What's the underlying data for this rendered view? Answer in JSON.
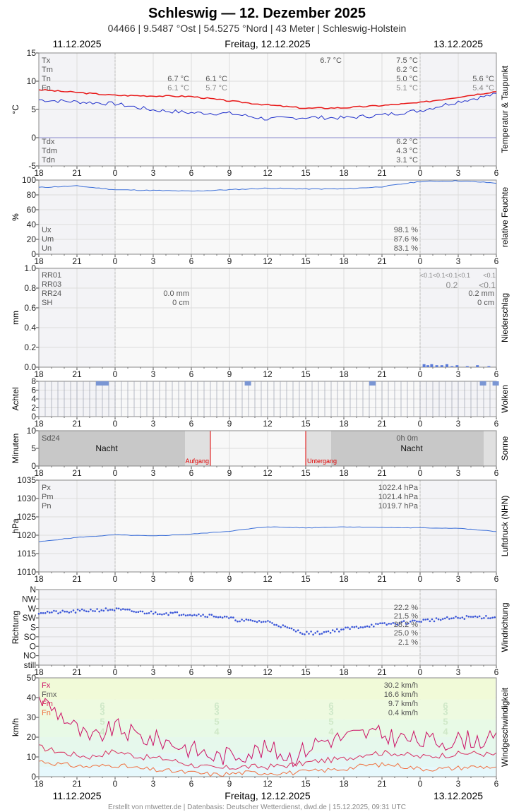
{
  "header": {
    "title": "Schleswig  —  12. Dezember 2025",
    "subtitle": "04466  |  9.5487 °Ost  |  54.5275 °Nord  |  43 Meter  |  Schleswig-Holstein",
    "date_prev": "11.12.2025",
    "date_main": "Freitag, 12.12.2025",
    "date_next": "13.12.2025"
  },
  "footer": {
    "date_prev": "11.12.2025",
    "date_main": "Freitag, 12.12.2025",
    "date_next": "13.12.2025",
    "credit": "Erstellt von mtwetter.de | Datenbasis: Deutscher Wetterdienst, dwd.de | 15.12.2025, 09:31 UTC"
  },
  "x_ticks": [
    "18",
    "21",
    "0",
    "3",
    "6",
    "9",
    "12",
    "15",
    "18",
    "21",
    "0",
    "3",
    "6"
  ],
  "colors": {
    "temperature": "#e81818",
    "dewpoint": "#2030cc",
    "humidity": "#3a6ed8",
    "precip": "#5a7ad8",
    "clouds": "#7a96d4",
    "pressure": "#3a6ed8",
    "wind_dir": "#3a56d8",
    "gust": "#cc1166",
    "mean_wind": "#d83060",
    "min_wind": "#f07040",
    "sunrise_line": "#e00000"
  },
  "chart_data": [
    {
      "type": "line",
      "title": "Temperatur & Taupunkt",
      "ylabel": "°C",
      "ylim": [
        -5,
        15
      ],
      "yticks": [
        "-5",
        "0",
        "5",
        "10",
        "15"
      ],
      "x_hours": [
        -6,
        0,
        3,
        6,
        9,
        12,
        15,
        18,
        21,
        24,
        27,
        30
      ],
      "series": [
        {
          "values": [
            8.5,
            7.5,
            7.4,
            7.3,
            6.5,
            5.8,
            5.2,
            5.3,
            5.7,
            6.2,
            7.2,
            8.2
          ]
        },
        {
          "values": [
            6.7,
            6.0,
            4.9,
            4.4,
            4.3,
            3.3,
            3.6,
            3.5,
            4.0,
            4.8,
            6.4,
            7.7
          ]
        }
      ],
      "labels_top": {
        "Tx": "Tx",
        "Tm": "Tm",
        "Tn": "Tn",
        "Fn": "Fn",
        "c1_tn": "6.7 °C",
        "c1_fn": "6.1 °C",
        "c2_tn": "6.1 °C",
        "c2_fn": "5.7 °C",
        "c3_tx": "6.7 °C",
        "c4_tx": "7.5 °C",
        "c4_tm": "6.2 °C",
        "c4_tn": "5.0 °C",
        "c4_fn": "5.1 °C",
        "c5_tn": "5.6 °C",
        "c5_fn": "5.4 °C"
      },
      "labels_bottom": {
        "Tdx": "Tdx",
        "Tdm": "Tdm",
        "Tdn": "Tdn",
        "tdx": "6.2 °C",
        "tdm": "4.3 °C",
        "tdn": "3.1 °C"
      }
    },
    {
      "type": "line",
      "title": "relative Feuchte",
      "ylabel": "%",
      "ylim": [
        0,
        100
      ],
      "yticks": [
        "0",
        "20",
        "40",
        "60",
        "80",
        "100"
      ],
      "x_hours": [
        -6,
        -3,
        0,
        3,
        6,
        9,
        12,
        15,
        18,
        21,
        24,
        27,
        30
      ],
      "values": [
        90,
        92,
        87,
        86,
        85,
        87,
        89,
        88,
        88,
        91,
        98,
        99,
        96
      ],
      "labels": {
        "Ux": "Ux",
        "Um": "Um",
        "Un": "Un",
        "ux": "98.1 %",
        "um": "87.6 %",
        "un": "83.1 %"
      }
    },
    {
      "type": "bar",
      "title": "Niederschlag",
      "ylabel": "mm",
      "ylim": [
        0,
        1
      ],
      "yticks": [
        "0.0",
        "0.2",
        "0.4",
        "0.6",
        "0.8",
        "1.0"
      ],
      "x_hours": [
        24.2,
        24.5,
        24.8,
        25.2,
        25.6,
        26.0,
        26.4,
        26.8,
        27.6,
        28.4,
        29.3
      ],
      "values": [
        0.03,
        0.02,
        0.03,
        0.02,
        0.02,
        0.03,
        0.01,
        0.02,
        0.01,
        0.02,
        0.01
      ],
      "labels": {
        "RR01": "RR01",
        "RR03": "RR03",
        "RR24": "RR24",
        "SH": "SH",
        "rr24_a": "0.0 mm",
        "sh_a": "0 cm",
        "rr01_b": "<0.1<0.1<0.1<0.1",
        "rr03_b": "0.2",
        "rr01_c": "<0.1",
        "rr03_c": "<0.1",
        "rr24_b": "0.2 mm",
        "sh_b": "0 cm"
      }
    },
    {
      "type": "bar",
      "title": "Wolken",
      "ylabel": "Achtel",
      "ylim": [
        0,
        8
      ],
      "yticks": [
        "0",
        "2",
        "4",
        "6",
        "8"
      ],
      "x_hours": [
        -1.5,
        -1.0,
        10.2,
        20.0,
        28.7,
        29.7
      ],
      "values": [
        8,
        8,
        8,
        8,
        8,
        8
      ]
    },
    {
      "type": "bar",
      "title": "Sonne",
      "ylabel": "Minuten",
      "ylim": [
        0,
        10
      ],
      "yticks": [
        "0",
        "5",
        "10"
      ],
      "sunrise_hour": 7.5,
      "sunset_hour": 15.0,
      "labels": {
        "Sd24": "Sd24",
        "night": "Nacht",
        "sunrise": "Aufgang",
        "sunset": "Untergang",
        "sun_total": "0h 0m"
      }
    },
    {
      "type": "line",
      "title": "Luftdruck (NHN)",
      "ylabel": "hPa",
      "ylim": [
        1010,
        1035
      ],
      "yticks": [
        "1010",
        "1015",
        "1020",
        "1025",
        "1030",
        "1035"
      ],
      "x_hours": [
        -6,
        -3,
        0,
        3,
        6,
        9,
        12,
        15,
        18,
        21,
        24,
        27,
        30
      ],
      "values": [
        1018.2,
        1019.4,
        1020.1,
        1019.8,
        1020.3,
        1021.1,
        1022.3,
        1022.0,
        1022.3,
        1022.1,
        1022.0,
        1021.9,
        1021.0
      ],
      "labels": {
        "Px": "Px",
        "Pm": "Pm",
        "Pn": "Pn",
        "px": "1022.4 hPa",
        "pm": "1021.4 hPa",
        "pn": "1019.7 hPa"
      }
    },
    {
      "type": "scatter",
      "title": "Windrichtung",
      "ylabel": "Richtung",
      "yticks": [
        "still",
        "NO",
        "O",
        "SO",
        "S",
        "SW",
        "W",
        "NW",
        "N"
      ],
      "ylim": [
        0,
        8
      ],
      "x_hours": [
        -6,
        -4,
        -2,
        0,
        2,
        4,
        6,
        8,
        10,
        12,
        13,
        14,
        15,
        16,
        17,
        18,
        20,
        22,
        24,
        26,
        28,
        30
      ],
      "values": [
        5.6,
        5.6,
        5.8,
        5.9,
        5.6,
        5.5,
        5.4,
        5.2,
        4.7,
        4.6,
        4.2,
        3.7,
        3.4,
        3.4,
        3.6,
        3.8,
        4.2,
        4.4,
        4.7,
        4.9,
        5.1,
        5.1
      ],
      "labels": {
        "p_sw": "22.2 %",
        "p_s": "21.5 %",
        "p_w": "28.2 %",
        "p_so": "25.0 %",
        "p_o": "2.1 %"
      }
    },
    {
      "type": "line",
      "title": "Windgeschwindigkeit",
      "ylabel": "km/h",
      "ylim": [
        0,
        50
      ],
      "yticks": [
        "0",
        "10",
        "20",
        "30",
        "40",
        "50"
      ],
      "x_hours": [
        -6,
        -4,
        -2,
        0,
        2,
        4,
        6,
        8,
        10,
        12,
        14,
        16,
        18,
        20,
        22,
        24,
        26,
        28,
        30
      ],
      "series": [
        {
          "values": [
            40,
            30,
            18,
            25,
            20,
            18,
            14,
            10,
            12,
            14,
            10,
            18,
            20,
            22,
            20,
            18,
            18,
            19,
            18
          ]
        },
        {
          "values": [
            15,
            12,
            10,
            13,
            10,
            9,
            6,
            4,
            5,
            5,
            6,
            8,
            9,
            12,
            12,
            10,
            11,
            12,
            11
          ]
        },
        {
          "values": [
            8,
            6,
            5,
            6,
            4,
            3,
            2,
            1,
            2,
            2,
            2,
            3,
            4,
            6,
            6,
            4,
            4,
            5,
            5
          ]
        }
      ],
      "bft_labels": [
        "3",
        "4",
        "5",
        "6"
      ],
      "labels": {
        "Fx": "Fx",
        "Fmx": "Fmx",
        "Fm": "Fm",
        "Fn": "Fn",
        "fx": "30.2 km/h",
        "fmx": "16.6 km/h",
        "fm": "9.7 km/h",
        "fn": "0.4 km/h"
      }
    }
  ]
}
